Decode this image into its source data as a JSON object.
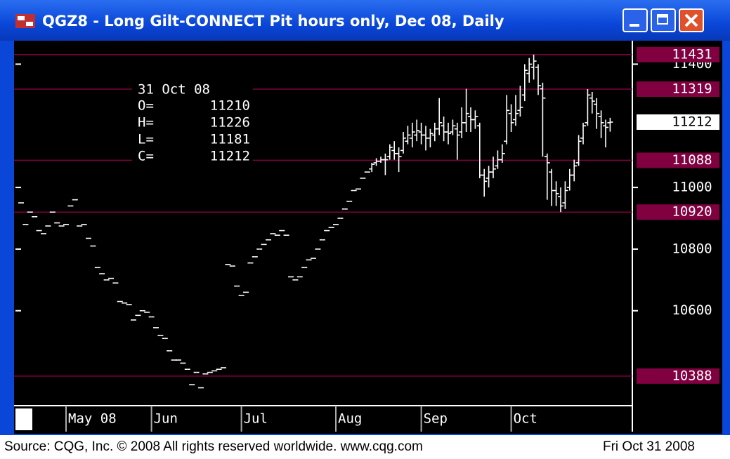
{
  "window_title": "QGZ8 - Long Gilt-CONNECT Pit hours only, Dec 08, Daily",
  "footer": {
    "source": "Source: CQG, Inc. © 2008 All rights reserved worldwide. www.cqg.com",
    "date": "Fri Oct 31 2008"
  },
  "chart_data": {
    "type": "ohlc",
    "categories": [
      null,
      null,
      null,
      null,
      null,
      null,
      null,
      null,
      null,
      null,
      "May 08",
      null,
      null,
      null,
      null,
      null,
      null,
      null,
      null,
      null,
      null,
      null,
      null,
      null,
      null,
      null,
      null,
      null,
      null,
      "Jun",
      null,
      null,
      null,
      null,
      null,
      null,
      null,
      null,
      null,
      null,
      null,
      null,
      null,
      null,
      null,
      null,
      null,
      null,
      null,
      "Jul",
      null,
      null,
      null,
      null,
      null,
      null,
      null,
      null,
      null,
      null,
      null,
      null,
      null,
      null,
      null,
      null,
      null,
      null,
      null,
      null,
      "Aug",
      null,
      null,
      null,
      null,
      null,
      null,
      null,
      null,
      null,
      null,
      null,
      null,
      null,
      null,
      null,
      null,
      null,
      null,
      "Sep",
      null,
      null,
      null,
      null,
      null,
      null,
      null,
      null,
      null,
      null,
      null,
      null,
      null,
      null,
      null,
      null,
      null,
      null,
      null,
      "Oct",
      null,
      null,
      null,
      null,
      null,
      null,
      null,
      null,
      null,
      null,
      null,
      null,
      null,
      null,
      null,
      null,
      null,
      null,
      null,
      null,
      null,
      null
    ],
    "open": [
      10950,
      10880,
      10920,
      10905,
      10860,
      10850,
      10875,
      10920,
      10885,
      10875,
      10880,
      10940,
      10960,
      10875,
      10880,
      10835,
      10810,
      10740,
      10720,
      10700,
      10705,
      10690,
      10630,
      10625,
      10620,
      10570,
      10585,
      10600,
      10595,
      10580,
      10545,
      10520,
      10510,
      10470,
      10440,
      10440,
      10430,
      10410,
      10360,
      10400,
      10350,
      10395,
      10400,
      10405,
      10410,
      10415,
      10750,
      10745,
      10680,
      10650,
      10660,
      10755,
      10775,
      10800,
      10815,
      10830,
      10850,
      10845,
      10860,
      10845,
      10710,
      10700,
      10710,
      10740,
      10765,
      10770,
      10800,
      10830,
      10860,
      10870,
      10880,
      10900,
      10930,
      10955,
      10990,
      10995,
      11030,
      11050,
      11060,
      11080,
      11085,
      11090,
      11100,
      11120,
      11110,
      11120,
      11150,
      11160,
      11170,
      11180,
      11170,
      11160,
      11170,
      11190,
      11200,
      11180,
      11180,
      11190,
      11180,
      11210,
      11230,
      11220,
      11200,
      11040,
      11030,
      11050,
      11070,
      11090,
      11150,
      11240,
      11220,
      11250,
      11300,
      11370,
      11390,
      11390,
      11320,
      11100,
      11050,
      10990,
      10970,
      10950,
      11000,
      11040,
      11080,
      11160,
      11210,
      11290,
      11270,
      11230,
      11200,
      11210
    ],
    "high": [
      10950,
      10880,
      10920,
      10905,
      10860,
      10850,
      10875,
      10920,
      10885,
      10875,
      10880,
      10940,
      10960,
      10875,
      10880,
      10835,
      10810,
      10740,
      10720,
      10700,
      10705,
      10690,
      10630,
      10625,
      10620,
      10570,
      10585,
      10600,
      10595,
      10580,
      10545,
      10520,
      10510,
      10470,
      10440,
      10440,
      10430,
      10410,
      10360,
      10400,
      10350,
      10395,
      10400,
      10405,
      10410,
      10415,
      10750,
      10745,
      10680,
      10650,
      10660,
      10755,
      10775,
      10800,
      10815,
      10830,
      10850,
      10845,
      10860,
      10845,
      10710,
      10700,
      10710,
      10740,
      10765,
      10770,
      10800,
      10830,
      10860,
      10870,
      10880,
      10900,
      10930,
      10955,
      10990,
      10995,
      11030,
      11050,
      11080,
      11095,
      11100,
      11110,
      11140,
      11150,
      11130,
      11180,
      11200,
      11210,
      11220,
      11210,
      11200,
      11190,
      11210,
      11290,
      11230,
      11210,
      11220,
      11210,
      11260,
      11320,
      11260,
      11250,
      11210,
      11060,
      11070,
      11100,
      11120,
      11140,
      11300,
      11270,
      11300,
      11330,
      11400,
      11420,
      11431,
      11400,
      11340,
      11110,
      11060,
      11020,
      11000,
      11020,
      11060,
      11090,
      11170,
      11210,
      11319,
      11310,
      11290,
      11250,
      11220,
      11226
    ],
    "low": [
      10950,
      10880,
      10920,
      10905,
      10860,
      10850,
      10875,
      10920,
      10885,
      10875,
      10880,
      10940,
      10960,
      10875,
      10880,
      10835,
      10810,
      10740,
      10720,
      10700,
      10705,
      10690,
      10630,
      10625,
      10620,
      10570,
      10585,
      10600,
      10595,
      10580,
      10545,
      10520,
      10510,
      10470,
      10440,
      10440,
      10430,
      10410,
      10360,
      10400,
      10350,
      10395,
      10400,
      10405,
      10410,
      10415,
      10750,
      10745,
      10680,
      10650,
      10660,
      10755,
      10775,
      10800,
      10815,
      10830,
      10850,
      10845,
      10860,
      10845,
      10710,
      10700,
      10710,
      10740,
      10765,
      10770,
      10800,
      10830,
      10860,
      10870,
      10880,
      10900,
      10930,
      10955,
      10990,
      10995,
      11030,
      11050,
      11050,
      11070,
      11080,
      11040,
      11090,
      11090,
      11050,
      11110,
      11140,
      11130,
      11150,
      11140,
      11120,
      11130,
      11150,
      11170,
      11150,
      11140,
      11170,
      11090,
      11160,
      11180,
      11180,
      11190,
      11030,
      10970,
      11000,
      11030,
      11060,
      11080,
      11140,
      11180,
      11200,
      11230,
      11280,
      11340,
      11350,
      11300,
      11100,
      10960,
      10940,
      10940,
      10920,
      10930,
      10990,
      11020,
      11070,
      11140,
      11200,
      11240,
      11190,
      11160,
      11130,
      11181
    ],
    "close": [
      10950,
      10880,
      10920,
      10905,
      10860,
      10850,
      10875,
      10920,
      10885,
      10875,
      10880,
      10940,
      10960,
      10875,
      10880,
      10835,
      10810,
      10740,
      10720,
      10700,
      10705,
      10690,
      10630,
      10625,
      10620,
      10570,
      10585,
      10600,
      10595,
      10580,
      10545,
      10520,
      10510,
      10470,
      10440,
      10440,
      10430,
      10410,
      10360,
      10400,
      10350,
      10395,
      10400,
      10405,
      10410,
      10415,
      10750,
      10745,
      10680,
      10650,
      10660,
      10755,
      10775,
      10800,
      10815,
      10830,
      10850,
      10845,
      10860,
      10845,
      10710,
      10700,
      10710,
      10740,
      10765,
      10770,
      10800,
      10830,
      10860,
      10870,
      10880,
      10900,
      10930,
      10955,
      10990,
      10995,
      11030,
      11050,
      11075,
      11085,
      11090,
      11090,
      11130,
      11110,
      11100,
      11160,
      11170,
      11180,
      11185,
      11170,
      11160,
      11175,
      11190,
      11210,
      11180,
      11175,
      11200,
      11170,
      11210,
      11240,
      11220,
      11230,
      11040,
      11020,
      11050,
      11060,
      11090,
      11110,
      11250,
      11210,
      11240,
      11260,
      11380,
      11400,
      11410,
      11330,
      11290,
      11080,
      10990,
      10980,
      10940,
      10990,
      11040,
      11070,
      11150,
      11200,
      11300,
      11280,
      11240,
      11210,
      11195,
      11212
    ],
    "color": "#ffffff",
    "ylim": [
      10292,
      11467
    ],
    "yticks": [
      10600,
      10800,
      11000,
      11400
    ],
    "levels": [
      11431,
      11319,
      11088,
      10920,
      10388
    ],
    "level_color": "#800040",
    "last": 11212,
    "info": {
      "date": "31 Oct 08",
      "rows": [
        {
          "label": "O=",
          "value": 11210
        },
        {
          "label": "H=",
          "value": 11226
        },
        {
          "label": "L=",
          "value": 11181
        },
        {
          "label": "C=",
          "value": 11212
        }
      ]
    }
  }
}
